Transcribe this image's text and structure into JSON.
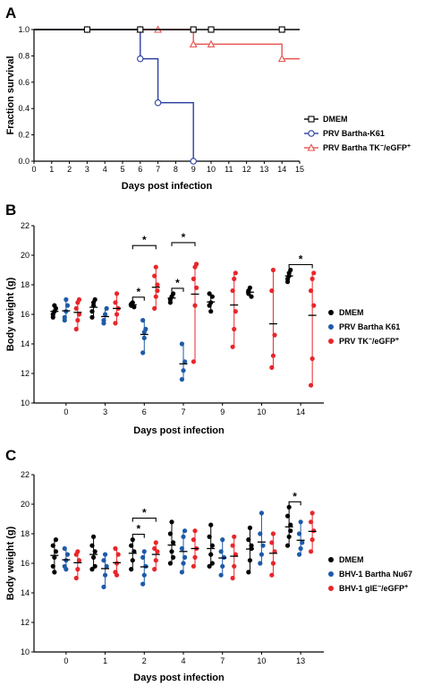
{
  "chart_data": [
    {
      "panel": "A",
      "type": "line",
      "subtype": "kaplan-meier survival (step)",
      "xlabel": "Days post infection",
      "ylabel": "Fraction survival",
      "xlim": [
        0,
        15
      ],
      "ylim": [
        0,
        1.0
      ],
      "xticks": [
        "0",
        "1",
        "2",
        "3",
        "4",
        "5",
        "6",
        "7",
        "8",
        "9",
        "10",
        "11",
        "12",
        "13",
        "14",
        "15"
      ],
      "yticks": [
        "0.0",
        "0.2",
        "0.4",
        "0.6",
        "0.8",
        "1.0"
      ],
      "legend_position": "right",
      "series": [
        {
          "name": "DMEM",
          "color": "#000000",
          "marker": "square",
          "steps": [
            [
              0,
              1.0
            ],
            [
              15,
              1.0
            ]
          ],
          "markers": [
            [
              3,
              1.0
            ],
            [
              6,
              1.0
            ],
            [
              9,
              1.0
            ],
            [
              10,
              1.0
            ],
            [
              14,
              1.0
            ]
          ]
        },
        {
          "name": "PRV Bartha-K61",
          "color": "#2b3fa0",
          "marker": "circle",
          "steps": [
            [
              0,
              1.0
            ],
            [
              6,
              1.0
            ],
            [
              6,
              0.778
            ],
            [
              7,
              0.778
            ],
            [
              7,
              0.444
            ],
            [
              9,
              0.444
            ],
            [
              9,
              0.0
            ]
          ],
          "markers": [
            [
              3,
              1.0
            ],
            [
              6,
              0.778
            ],
            [
              7,
              0.444
            ],
            [
              9,
              0.0
            ]
          ]
        },
        {
          "name": "PRV Bartha TK⁻/eGFP⁺",
          "color": "#e8524e",
          "marker": "triangle",
          "steps": [
            [
              0,
              1.0
            ],
            [
              9,
              1.0
            ],
            [
              9,
              0.889
            ],
            [
              14,
              0.889
            ],
            [
              14,
              0.778
            ],
            [
              15,
              0.778
            ]
          ],
          "markers": [
            [
              6,
              1.0
            ],
            [
              7,
              1.0
            ],
            [
              9,
              0.889
            ],
            [
              10,
              0.889
            ],
            [
              14,
              0.778
            ]
          ]
        }
      ]
    },
    {
      "panel": "B",
      "type": "scatter",
      "subtype": "dot plot with mean and range",
      "xlabel": "Days post infection",
      "ylabel": "Body weight (g)",
      "ylim": [
        10,
        22
      ],
      "yticks": [
        "10",
        "12",
        "14",
        "16",
        "18",
        "20",
        "22"
      ],
      "categories": [
        "0",
        "3",
        "6",
        "7",
        "9",
        "10",
        "14"
      ],
      "legend_position": "right",
      "series": [
        {
          "name": "DMEM",
          "color": "#000000",
          "values": [
            [
              16.0,
              16.2,
              16.4,
              15.8,
              16.6
            ],
            [
              16.2,
              16.6,
              17.0,
              15.8,
              16.8
            ],
            [
              16.6,
              16.8,
              16.5,
              16.7
            ],
            [
              17.0,
              17.2,
              17.4,
              16.8
            ],
            [
              16.6,
              16.8,
              17.2,
              17.4,
              16.2
            ],
            [
              17.4,
              17.8,
              17.2,
              17.6
            ],
            [
              18.4,
              18.8,
              19.0,
              18.2,
              18.6
            ]
          ]
        },
        {
          "name": "PRV Bartha K61",
          "color": "#1e5aa8",
          "values": [
            [
              15.8,
              16.2,
              16.6,
              15.6,
              17.0
            ],
            [
              15.6,
              16.0,
              16.4,
              15.4
            ],
            [
              13.4,
              14.4,
              15.0,
              15.6,
              14.8
            ],
            [
              11.6,
              12.2,
              12.8,
              14.0
            ]
          ]
        },
        {
          "name": "PRV TK⁻/eGFP⁺",
          "color": "#e8262b",
          "values": [
            [
              15.0,
              15.6,
              16.0,
              16.4,
              16.8,
              17.0
            ],
            [
              15.4,
              16.0,
              16.4,
              16.8,
              17.4
            ],
            [
              16.4,
              17.2,
              18.0,
              18.6,
              19.2,
              17.6
            ],
            [
              12.8,
              16.6,
              17.8,
              18.4,
              19.2,
              19.4
            ],
            [
              13.8,
              15.0,
              16.2,
              17.6,
              18.4,
              18.8
            ],
            [
              12.4,
              13.2,
              14.6,
              17.6,
              19.0
            ],
            [
              11.2,
              13.0,
              16.6,
              17.6,
              18.4,
              18.8
            ]
          ]
        }
      ],
      "significance": [
        {
          "category": "6",
          "pair": [
            "DMEM",
            "PRV Bartha K61"
          ],
          "label": "*"
        },
        {
          "category": "6",
          "pair": [
            "DMEM",
            "PRV TK⁻/eGFP⁺"
          ],
          "label": "*"
        },
        {
          "category": "7",
          "pair": [
            "DMEM",
            "PRV Bartha K61"
          ],
          "label": "*"
        },
        {
          "category": "7",
          "pair": [
            "DMEM",
            "PRV TK⁻/eGFP⁺"
          ],
          "label": "*"
        },
        {
          "category": "14",
          "pair": [
            "DMEM",
            "PRV TK⁻/eGFP⁺"
          ],
          "label": "*"
        }
      ]
    },
    {
      "panel": "C",
      "type": "scatter",
      "subtype": "dot plot with mean and range",
      "xlabel": "Days post infection",
      "ylabel": "Body weight (g)",
      "ylim": [
        10,
        22
      ],
      "yticks": [
        "10",
        "12",
        "14",
        "16",
        "18",
        "20",
        "22"
      ],
      "categories": [
        "0",
        "1",
        "2",
        "4",
        "7",
        "10",
        "13"
      ],
      "legend_position": "right",
      "series": [
        {
          "name": "DMEM",
          "color": "#000000",
          "values": [
            [
              15.8,
              16.4,
              16.8,
              17.2,
              15.4,
              17.6
            ],
            [
              15.6,
              16.4,
              16.8,
              17.2,
              17.8,
              15.8
            ],
            [
              15.6,
              16.2,
              16.8,
              17.2,
              17.6
            ],
            [
              16.0,
              16.8,
              17.4,
              18.0,
              18.8,
              16.4
            ],
            [
              15.8,
              16.6,
              17.2,
              17.8,
              18.6,
              16.0
            ],
            [
              15.4,
              16.2,
              17.0,
              17.6,
              18.4,
              17.2
            ],
            [
              17.2,
              17.8,
              18.6,
              19.2,
              19.8,
              18.2
            ]
          ]
        },
        {
          "name": "BHV-1 Bartha Nu67",
          "color": "#1e5aa8",
          "values": [
            [
              15.8,
              16.2,
              16.6,
              17.0,
              15.6
            ],
            [
              14.4,
              15.2,
              15.8,
              16.2,
              16.6
            ],
            [
              14.6,
              15.2,
              15.8,
              16.4,
              16.8
            ],
            [
              15.4,
              16.0,
              16.4,
              17.0,
              17.8,
              18.2
            ],
            [
              15.2,
              15.8,
              16.4,
              16.8,
              17.6
            ],
            [
              16.0,
              16.6,
              17.2,
              18.0,
              19.4
            ],
            [
              16.6,
              17.0,
              17.4,
              18.0,
              18.8
            ]
          ]
        },
        {
          "name": "BHV-1 gIE⁻/eGFP⁺",
          "color": "#e8262b",
          "values": [
            [
              15.0,
              15.6,
              16.2,
              16.6,
              16.8
            ],
            [
              15.4,
              16.0,
              16.6,
              17.0,
              15.2
            ],
            [
              15.6,
              16.2,
              16.8,
              17.0,
              17.4
            ],
            [
              15.8,
              16.4,
              17.0,
              17.6,
              18.2
            ],
            [
              15.0,
              15.8,
              16.6,
              17.2,
              17.8
            ],
            [
              15.2,
              16.0,
              16.8,
              17.4,
              18.0
            ],
            [
              16.8,
              17.6,
              18.2,
              18.8,
              19.4
            ]
          ]
        }
      ],
      "significance": [
        {
          "category": "2",
          "pair": [
            "DMEM",
            "BHV-1 Bartha Nu67"
          ],
          "label": "*"
        },
        {
          "category": "2",
          "pair": [
            "DMEM",
            "BHV-1 gIE⁻/eGFP⁺"
          ],
          "label": "*"
        },
        {
          "category": "13",
          "pair": [
            "DMEM",
            "BHV-1 Bartha Nu67"
          ],
          "label": "*"
        }
      ]
    }
  ]
}
